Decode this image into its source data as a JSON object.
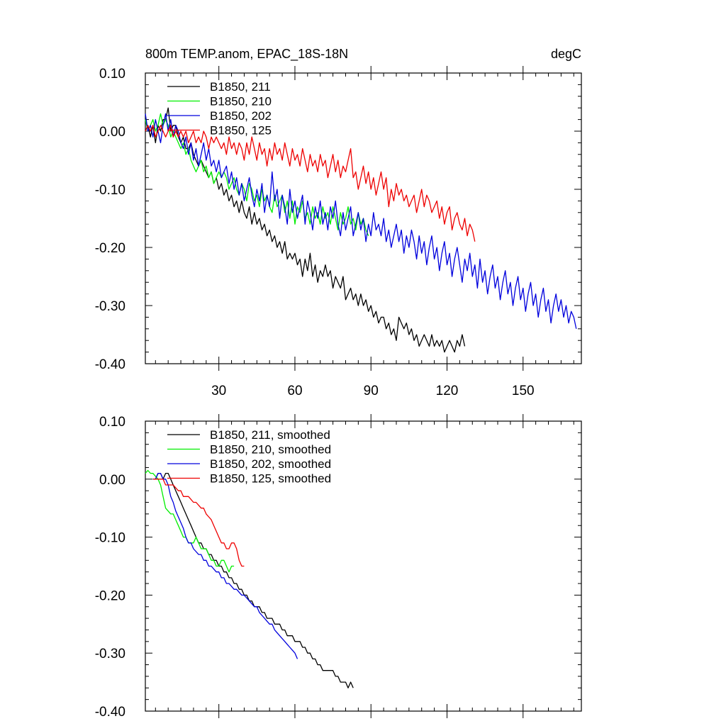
{
  "chart_data": [
    {
      "type": "line",
      "title": "800m TEMP.anom, EPAC_18S-18N",
      "units": "degC",
      "ylim": [
        -0.4,
        0.1
      ],
      "xlim": [
        1,
        173
      ],
      "yticks": [
        "0.10",
        "0.00",
        "-0.10",
        "-0.20",
        "-0.30",
        "-0.40"
      ],
      "xticks": [
        "30",
        "60",
        "90",
        "120",
        "150"
      ],
      "legend_position": "top-left",
      "series": [
        {
          "name": "B1850, 211",
          "color": "#000000",
          "x_start": 1,
          "values": [
            0.0,
            0.01,
            -0.01,
            0.01,
            -0.02,
            0.01,
            0.0,
            0.02,
            0.02,
            0.04,
            0.0,
            0.01,
            0.01,
            -0.01,
            -0.02,
            -0.01,
            -0.03,
            -0.03,
            -0.02,
            -0.04,
            -0.05,
            -0.06,
            -0.05,
            -0.06,
            -0.07,
            -0.08,
            -0.07,
            -0.09,
            -0.08,
            -0.1,
            -0.09,
            -0.11,
            -0.1,
            -0.12,
            -0.11,
            -0.13,
            -0.12,
            -0.14,
            -0.12,
            -0.14,
            -0.15,
            -0.13,
            -0.16,
            -0.14,
            -0.16,
            -0.15,
            -0.17,
            -0.16,
            -0.18,
            -0.17,
            -0.19,
            -0.18,
            -0.2,
            -0.19,
            -0.21,
            -0.19,
            -0.22,
            -0.21,
            -0.22,
            -0.21,
            -0.23,
            -0.22,
            -0.25,
            -0.22,
            -0.24,
            -0.21,
            -0.25,
            -0.23,
            -0.26,
            -0.24,
            -0.25,
            -0.23,
            -0.25,
            -0.24,
            -0.27,
            -0.25,
            -0.26,
            -0.27,
            -0.25,
            -0.29,
            -0.28,
            -0.27,
            -0.29,
            -0.28,
            -0.3,
            -0.28,
            -0.3,
            -0.29,
            -0.31,
            -0.3,
            -0.32,
            -0.31,
            -0.33,
            -0.32,
            -0.32,
            -0.34,
            -0.33,
            -0.35,
            -0.34,
            -0.36,
            -0.32,
            -0.33,
            -0.34,
            -0.33,
            -0.35,
            -0.34,
            -0.36,
            -0.35,
            -0.37,
            -0.36,
            -0.35,
            -0.36,
            -0.37,
            -0.35,
            -0.37,
            -0.36,
            -0.37,
            -0.36,
            -0.38,
            -0.37,
            -0.36,
            -0.37,
            -0.38,
            -0.36,
            -0.37,
            -0.35,
            -0.37
          ]
        },
        {
          "name": "B1850, 210",
          "color": "#00ee00",
          "x_start": 1,
          "values": [
            0.02,
            0.0,
            0.01,
            0.02,
            0.0,
            0.01,
            0.03,
            0.01,
            0.02,
            0.01,
            -0.01,
            0.0,
            -0.01,
            -0.02,
            -0.03,
            -0.02,
            -0.04,
            -0.03,
            -0.05,
            -0.06,
            -0.07,
            -0.06,
            -0.05,
            -0.07,
            -0.06,
            -0.08,
            -0.07,
            -0.09,
            -0.08,
            -0.07,
            -0.08,
            -0.07,
            -0.08,
            -0.1,
            -0.09,
            -0.08,
            -0.1,
            -0.11,
            -0.09,
            -0.1,
            -0.12,
            -0.09,
            -0.1,
            -0.12,
            -0.11,
            -0.13,
            -0.1,
            -0.12,
            -0.11,
            -0.13,
            -0.14,
            -0.11,
            -0.13,
            -0.12,
            -0.11,
            -0.14,
            -0.12,
            -0.15,
            -0.12,
            -0.16,
            -0.13,
            -0.14,
            -0.12,
            -0.15,
            -0.14,
            -0.16,
            -0.13,
            -0.15,
            -0.14,
            -0.16,
            -0.13,
            -0.15,
            -0.14,
            -0.16,
            -0.13,
            -0.15,
            -0.17,
            -0.14,
            -0.16,
            -0.15,
            -0.13,
            -0.16,
            -0.15,
            -0.17,
            -0.14,
            -0.16,
            -0.15,
            -0.17,
            -0.18
          ]
        },
        {
          "name": "B1850, 202",
          "color": "#0000dd",
          "x_start": 1,
          "values": [
            0.03,
            0.0,
            0.01,
            -0.01,
            0.02,
            0.0,
            -0.02,
            0.01,
            0.03,
            0.0,
            0.02,
            -0.01,
            0.01,
            0.0,
            -0.02,
            -0.03,
            -0.01,
            -0.04,
            -0.02,
            -0.05,
            -0.03,
            -0.06,
            -0.04,
            -0.02,
            -0.05,
            -0.03,
            -0.06,
            -0.05,
            -0.07,
            -0.05,
            -0.08,
            -0.07,
            -0.06,
            -0.09,
            -0.07,
            -0.1,
            -0.08,
            -0.11,
            -0.09,
            -0.12,
            -0.1,
            -0.08,
            -0.11,
            -0.13,
            -0.1,
            -0.12,
            -0.09,
            -0.14,
            -0.11,
            -0.13,
            -0.07,
            -0.12,
            -0.1,
            -0.15,
            -0.11,
            -0.13,
            -0.16,
            -0.1,
            -0.14,
            -0.12,
            -0.15,
            -0.13,
            -0.11,
            -0.16,
            -0.12,
            -0.14,
            -0.17,
            -0.13,
            -0.15,
            -0.12,
            -0.16,
            -0.14,
            -0.17,
            -0.13,
            -0.15,
            -0.12,
            -0.16,
            -0.18,
            -0.14,
            -0.17,
            -0.15,
            -0.13,
            -0.18,
            -0.16,
            -0.14,
            -0.17,
            -0.15,
            -0.19,
            -0.16,
            -0.18,
            -0.14,
            -0.17,
            -0.16,
            -0.18,
            -0.15,
            -0.19,
            -0.17,
            -0.2,
            -0.18,
            -0.16,
            -0.19,
            -0.17,
            -0.21,
            -0.18,
            -0.2,
            -0.17,
            -0.19,
            -0.22,
            -0.18,
            -0.21,
            -0.19,
            -0.23,
            -0.2,
            -0.18,
            -0.22,
            -0.2,
            -0.24,
            -0.21,
            -0.19,
            -0.23,
            -0.21,
            -0.25,
            -0.22,
            -0.2,
            -0.23,
            -0.26,
            -0.22,
            -0.24,
            -0.21,
            -0.25,
            -0.23,
            -0.27,
            -0.22,
            -0.26,
            -0.24,
            -0.28,
            -0.25,
            -0.23,
            -0.27,
            -0.25,
            -0.29,
            -0.26,
            -0.24,
            -0.28,
            -0.26,
            -0.3,
            -0.27,
            -0.25,
            -0.29,
            -0.27,
            -0.31,
            -0.28,
            -0.26,
            -0.3,
            -0.28,
            -0.32,
            -0.29,
            -0.27,
            -0.31,
            -0.29,
            -0.33,
            -0.3,
            -0.28,
            -0.31,
            -0.29,
            -0.32,
            -0.3,
            -0.33,
            -0.31,
            -0.32,
            -0.34
          ]
        },
        {
          "name": "B1850, 125",
          "color": "#ee0000",
          "x_start": 1,
          "values": [
            0.0,
            0.01,
            0.0,
            0.01,
            -0.01,
            0.0,
            0.01,
            0.0,
            -0.01,
            0.0,
            0.01,
            -0.01,
            0.0,
            -0.01,
            0.0,
            -0.01,
            0.0,
            -0.02,
            -0.01,
            0.0,
            -0.02,
            -0.01,
            -0.02,
            0.0,
            -0.01,
            -0.03,
            -0.01,
            -0.02,
            -0.01,
            -0.02,
            -0.03,
            -0.02,
            -0.04,
            -0.01,
            -0.03,
            -0.02,
            -0.04,
            -0.02,
            -0.03,
            -0.05,
            -0.02,
            -0.04,
            -0.01,
            -0.03,
            -0.05,
            -0.02,
            -0.04,
            -0.03,
            -0.06,
            -0.03,
            -0.05,
            -0.02,
            -0.04,
            -0.03,
            -0.05,
            -0.02,
            -0.04,
            -0.06,
            -0.03,
            -0.05,
            -0.04,
            -0.06,
            -0.03,
            -0.05,
            -0.07,
            -0.04,
            -0.06,
            -0.05,
            -0.07,
            -0.04,
            -0.06,
            -0.05,
            -0.08,
            -0.06,
            -0.04,
            -0.07,
            -0.05,
            -0.08,
            -0.06,
            -0.07,
            -0.05,
            -0.03,
            -0.08,
            -0.07,
            -0.1,
            -0.08,
            -0.06,
            -0.09,
            -0.07,
            -0.1,
            -0.08,
            -0.11,
            -0.09,
            -0.07,
            -0.1,
            -0.08,
            -0.13,
            -0.1,
            -0.12,
            -0.09,
            -0.11,
            -0.1,
            -0.12,
            -0.11,
            -0.13,
            -0.12,
            -0.11,
            -0.14,
            -0.12,
            -0.1,
            -0.13,
            -0.11,
            -0.12,
            -0.14,
            -0.13,
            -0.12,
            -0.15,
            -0.13,
            -0.16,
            -0.14,
            -0.13,
            -0.17,
            -0.15,
            -0.14,
            -0.16,
            -0.17,
            -0.15,
            -0.18,
            -0.16,
            -0.17,
            -0.19
          ]
        }
      ]
    },
    {
      "type": "line",
      "title": "",
      "ylim": [
        -0.4,
        0.1
      ],
      "xlim": [
        1,
        173
      ],
      "yticks": [
        "0.10",
        "0.00",
        "-0.10",
        "-0.20",
        "-0.30",
        "-0.40"
      ],
      "legend_position": "top-left",
      "series": [
        {
          "name": "B1850, 211, smoothed",
          "color": "#000000",
          "x_start": 4,
          "values": [
            0.0,
            0.0,
            0.01,
            0.01,
            0.0,
            0.01,
            0.01,
            0.0,
            -0.01,
            -0.02,
            -0.03,
            -0.04,
            -0.05,
            -0.06,
            -0.07,
            -0.08,
            -0.09,
            -0.1,
            -0.11,
            -0.11,
            -0.12,
            -0.12,
            -0.13,
            -0.13,
            -0.14,
            -0.14,
            -0.15,
            -0.15,
            -0.16,
            -0.16,
            -0.17,
            -0.17,
            -0.18,
            -0.18,
            -0.19,
            -0.19,
            -0.2,
            -0.2,
            -0.21,
            -0.21,
            -0.22,
            -0.22,
            -0.22,
            -0.23,
            -0.23,
            -0.24,
            -0.24,
            -0.24,
            -0.25,
            -0.25,
            -0.25,
            -0.26,
            -0.26,
            -0.27,
            -0.27,
            -0.27,
            -0.28,
            -0.28,
            -0.28,
            -0.29,
            -0.29,
            -0.3,
            -0.3,
            -0.31,
            -0.31,
            -0.32,
            -0.32,
            -0.33,
            -0.33,
            -0.33,
            -0.33,
            -0.33,
            -0.34,
            -0.34,
            -0.35,
            -0.35,
            -0.35,
            -0.36,
            -0.35,
            -0.36
          ]
        },
        {
          "name": "B1850, 210, smoothed",
          "color": "#00ee00",
          "x_start": 1,
          "values": [
            0.01,
            0.015,
            0.01,
            0.01,
            0.005,
            0.0,
            -0.01,
            -0.03,
            -0.05,
            -0.055,
            -0.06,
            -0.06,
            -0.07,
            -0.08,
            -0.09,
            -0.1,
            -0.1,
            -0.11,
            -0.11,
            -0.11,
            -0.1,
            -0.11,
            -0.12,
            -0.12,
            -0.12,
            -0.13,
            -0.14,
            -0.14,
            -0.15,
            -0.15,
            -0.14,
            -0.14,
            -0.15,
            -0.16,
            -0.15,
            -0.15
          ]
        },
        {
          "name": "B1850, 202, smoothed",
          "color": "#0000dd",
          "x_start": 4,
          "values": [
            0.0,
            0.0,
            0.01,
            0.01,
            0.0,
            0.0,
            -0.01,
            -0.03,
            -0.04,
            -0.055,
            -0.065,
            -0.075,
            -0.085,
            -0.1,
            -0.11,
            -0.11,
            -0.12,
            -0.125,
            -0.13,
            -0.13,
            -0.14,
            -0.14,
            -0.15,
            -0.15,
            -0.155,
            -0.16,
            -0.16,
            -0.17,
            -0.17,
            -0.18,
            -0.18,
            -0.185,
            -0.19,
            -0.19,
            -0.195,
            -0.2,
            -0.2,
            -0.205,
            -0.21,
            -0.215,
            -0.22,
            -0.22,
            -0.23,
            -0.235,
            -0.24,
            -0.245,
            -0.25,
            -0.25,
            -0.26,
            -0.265,
            -0.27,
            -0.275,
            -0.28,
            -0.285,
            -0.29,
            -0.295,
            -0.3,
            -0.31
          ]
        },
        {
          "name": "B1850, 125, smoothed",
          "color": "#ee0000",
          "x_start": 4,
          "values": [
            0.0,
            0.0,
            0.0,
            0.0,
            0.0,
            -0.01,
            -0.01,
            -0.01,
            -0.01,
            -0.015,
            -0.02,
            -0.02,
            -0.03,
            -0.03,
            -0.03,
            -0.035,
            -0.04,
            -0.04,
            -0.045,
            -0.05,
            -0.05,
            -0.06,
            -0.065,
            -0.07,
            -0.08,
            -0.09,
            -0.1,
            -0.11,
            -0.11,
            -0.12,
            -0.12,
            -0.11,
            -0.11,
            -0.12,
            -0.14,
            -0.15,
            -0.15
          ]
        }
      ]
    }
  ]
}
